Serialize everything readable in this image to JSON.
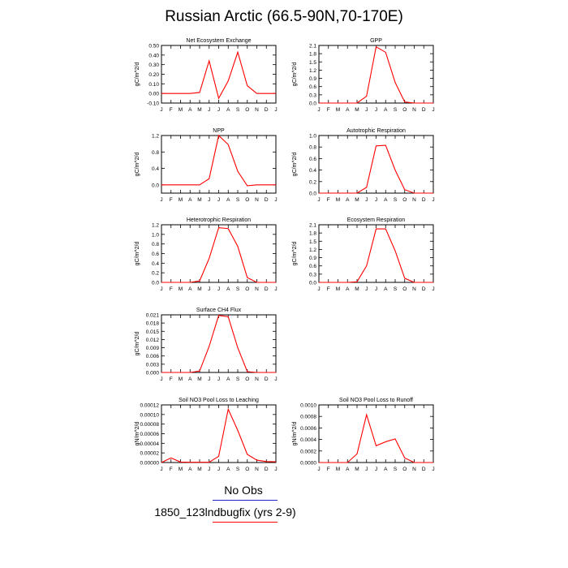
{
  "title": "Russian Arctic (66.5-90N,70-170E)",
  "months": [
    "J",
    "F",
    "M",
    "A",
    "M",
    "J",
    "J",
    "A",
    "S",
    "O",
    "N",
    "D",
    "J"
  ],
  "line_color": "#ff0000",
  "legend": [
    {
      "label": "No Obs",
      "color": "#2222cc"
    },
    {
      "label": "1850_123lndbugfix (yrs 2-9)",
      "color": "#ff0000"
    }
  ],
  "chart_data": [
    {
      "id": "nee",
      "type": "line",
      "title": "Net Ecosystem Exchange",
      "ylabel": "gC/m^2/d",
      "ylim": [
        -0.1,
        0.5
      ],
      "ytick_labels": [
        "-0.10",
        "0.00",
        "0.10",
        "0.20",
        "0.30",
        "0.40",
        "0.50"
      ],
      "values": [
        0,
        0,
        0,
        0,
        0.01,
        0.34,
        -0.05,
        0.13,
        0.43,
        0.08,
        0,
        0,
        0
      ]
    },
    {
      "id": "gpp",
      "type": "line",
      "title": "GPP",
      "ylabel": "gC/m^2/d",
      "ylim": [
        0,
        2.1
      ],
      "ytick_labels": [
        "0.0",
        "0.3",
        "0.6",
        "0.9",
        "1.2",
        "1.5",
        "1.8",
        "2.1"
      ],
      "values": [
        0,
        0,
        0,
        0,
        0,
        0.25,
        2.05,
        1.85,
        0.75,
        0.04,
        0,
        0,
        0
      ]
    },
    {
      "id": "npp",
      "type": "line",
      "title": "NPP",
      "ylabel": "gC/m^2/d",
      "ylim": [
        -0.2,
        1.2
      ],
      "ytick_labels": [
        "0.0",
        "0.4",
        "0.8",
        "1.2"
      ],
      "values": [
        0,
        0,
        0,
        0,
        0,
        0.15,
        1.2,
        0.98,
        0.33,
        -0.02,
        0,
        0,
        0
      ]
    },
    {
      "id": "ar",
      "type": "line",
      "title": "Autotrophic Respiration",
      "ylabel": "gC/m^2/d",
      "ylim": [
        0,
        1.0
      ],
      "ytick_labels": [
        "0.0",
        "0.2",
        "0.4",
        "0.6",
        "0.8",
        "1.0"
      ],
      "values": [
        0,
        0,
        0,
        0,
        0,
        0.1,
        0.82,
        0.83,
        0.4,
        0.06,
        0,
        0,
        0
      ]
    },
    {
      "id": "hr",
      "type": "line",
      "title": "Heterotrophic Respiration",
      "ylabel": "gC/m^2/d",
      "ylim": [
        0,
        1.2
      ],
      "ytick_labels": [
        "0.0",
        "0.2",
        "0.4",
        "0.6",
        "0.8",
        "1.0",
        "1.2"
      ],
      "values": [
        0,
        0,
        0,
        0,
        0.03,
        0.5,
        1.14,
        1.12,
        0.75,
        0.1,
        0,
        0,
        0
      ]
    },
    {
      "id": "er",
      "type": "line",
      "title": "Ecosystem Respiration",
      "ylabel": "gC/m^2/d",
      "ylim": [
        0,
        2.1
      ],
      "ytick_labels": [
        "0.0",
        "0.3",
        "0.6",
        "0.9",
        "1.2",
        "1.5",
        "1.8",
        "2.1"
      ],
      "values": [
        0,
        0,
        0,
        0,
        0.02,
        0.6,
        1.95,
        1.95,
        1.15,
        0.15,
        0,
        0,
        0
      ]
    },
    {
      "id": "ch4",
      "type": "line",
      "title": "Surface CH4 Flux",
      "ylabel": "gC/m^2/d",
      "ylim": [
        0,
        0.021
      ],
      "ytick_labels": [
        "0.000",
        "0.003",
        "0.006",
        "0.009",
        "0.012",
        "0.015",
        "0.018",
        "0.021"
      ],
      "values": [
        0,
        0,
        0,
        0,
        0.0005,
        0.0095,
        0.0208,
        0.0203,
        0.009,
        0.0003,
        0,
        0,
        0
      ]
    },
    {
      "id": "no3leach",
      "type": "line",
      "title": "Soil NO3 Pool Loss to Leaching",
      "ylabel": "gN/m^2/d",
      "ylim": [
        0,
        0.00012
      ],
      "ytick_labels": [
        "0.00000",
        "0.00002",
        "0.00004",
        "0.00006",
        "0.00008",
        "0.00010",
        "0.00012"
      ],
      "values": [
        0,
        9.5e-06,
        1e-06,
        5e-07,
        5e-07,
        5e-07,
        1.3e-05,
        0.000111,
        6.7e-05,
        1.7e-05,
        5e-06,
        2e-06,
        1.5e-06
      ]
    },
    {
      "id": "no3runoff",
      "type": "line",
      "title": "Soil NO3 Pool Loss to Runoff",
      "ylabel": "gN/m^2/d",
      "ylim": [
        0,
        0.001
      ],
      "ytick_labels": [
        "0.0000",
        "0.0002",
        "0.0004",
        "0.0006",
        "0.0008",
        "0.0010"
      ],
      "values": [
        0,
        0,
        0,
        0,
        0.00015,
        0.00083,
        0.00029,
        0.00036,
        0.00041,
        8e-05,
        0,
        0,
        0
      ]
    }
  ]
}
